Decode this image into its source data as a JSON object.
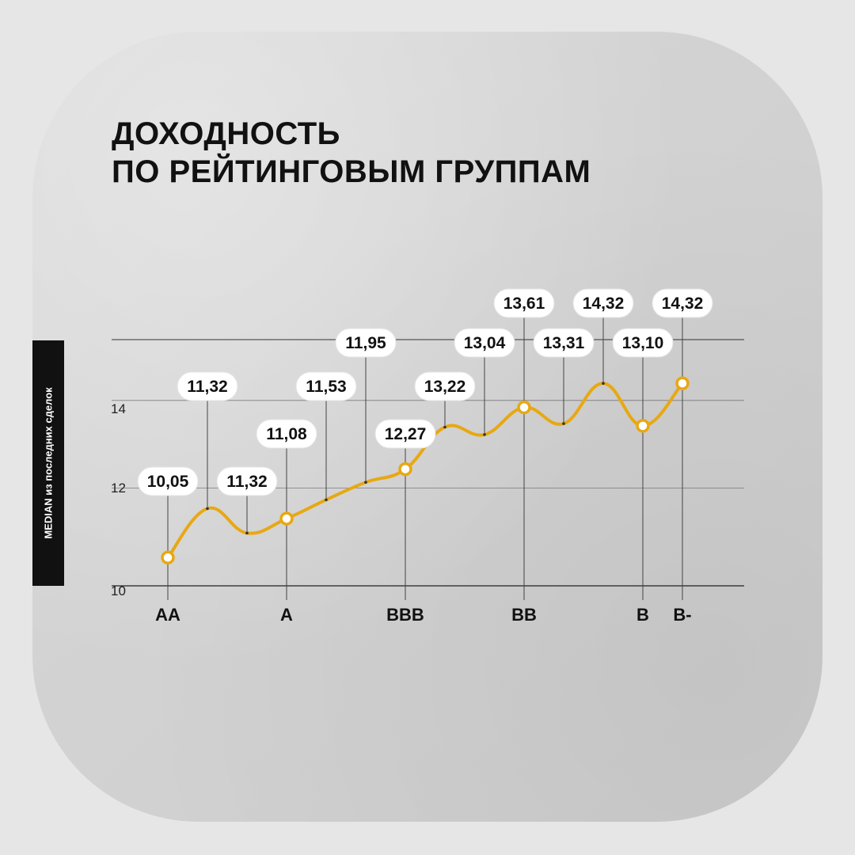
{
  "title_lines": [
    "ДОХОДНОСТЬ",
    "ПО РЕЙТИНГОВЫМ ГРУППАМ"
  ],
  "colors": {
    "accent": "#e8a812",
    "background": "#e6e6e6",
    "card": "#d4d4d4",
    "text": "#111111"
  },
  "chart_data": {
    "type": "line",
    "title": "ДОХОДНОСТЬ ПО РЕЙТИНГОВЫМ ГРУППАМ",
    "ylabel": "MEDIAN из последних сделок",
    "xlabel": "",
    "yticks": [
      "10",
      "12",
      "14"
    ],
    "ylim": [
      9.7,
      14.5
    ],
    "grid": true,
    "x_categories": [
      "AA",
      "A",
      "BBB",
      "BB",
      "B",
      "B-"
    ],
    "points": [
      {
        "label": "10,05",
        "y": 10.32,
        "category": "AA",
        "marker": true
      },
      {
        "label": "11,32",
        "y": 11.44,
        "category": "",
        "marker": false
      },
      {
        "label": "11,32",
        "y": 10.88,
        "category": "",
        "marker": false
      },
      {
        "label": "11,08",
        "y": 11.21,
        "category": "A",
        "marker": true
      },
      {
        "label": "11,53",
        "y": 11.64,
        "category": "",
        "marker": false
      },
      {
        "label": "11,95",
        "y": 12.04,
        "category": "",
        "marker": false
      },
      {
        "label": "12,27",
        "y": 12.34,
        "category": "BBB",
        "marker": true
      },
      {
        "label": "13,22",
        "y": 13.3,
        "category": "",
        "marker": false
      },
      {
        "label": "13,04",
        "y": 13.13,
        "category": "",
        "marker": false
      },
      {
        "label": "13,61",
        "y": 13.75,
        "category": "BB",
        "marker": true
      },
      {
        "label": "13,31",
        "y": 13.38,
        "category": "",
        "marker": false
      },
      {
        "label": "14,32",
        "y": 14.3,
        "category": "",
        "marker": false
      },
      {
        "label": "13,10",
        "y": 13.33,
        "category": "B",
        "marker": true
      },
      {
        "label": "14,32",
        "y": 14.3,
        "category": "B-",
        "marker": true
      }
    ]
  }
}
